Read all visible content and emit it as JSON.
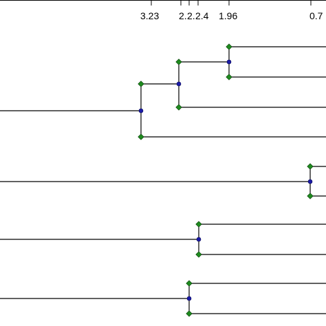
{
  "tree": {
    "axis_labels": [
      "3.23",
      "2.",
      "2.",
      "2.4",
      "1.96",
      "0.7"
    ],
    "colors": {
      "leaf_node": "#1e8a1e",
      "join_node": "#1a1aa8",
      "branch": "#000000"
    }
  }
}
